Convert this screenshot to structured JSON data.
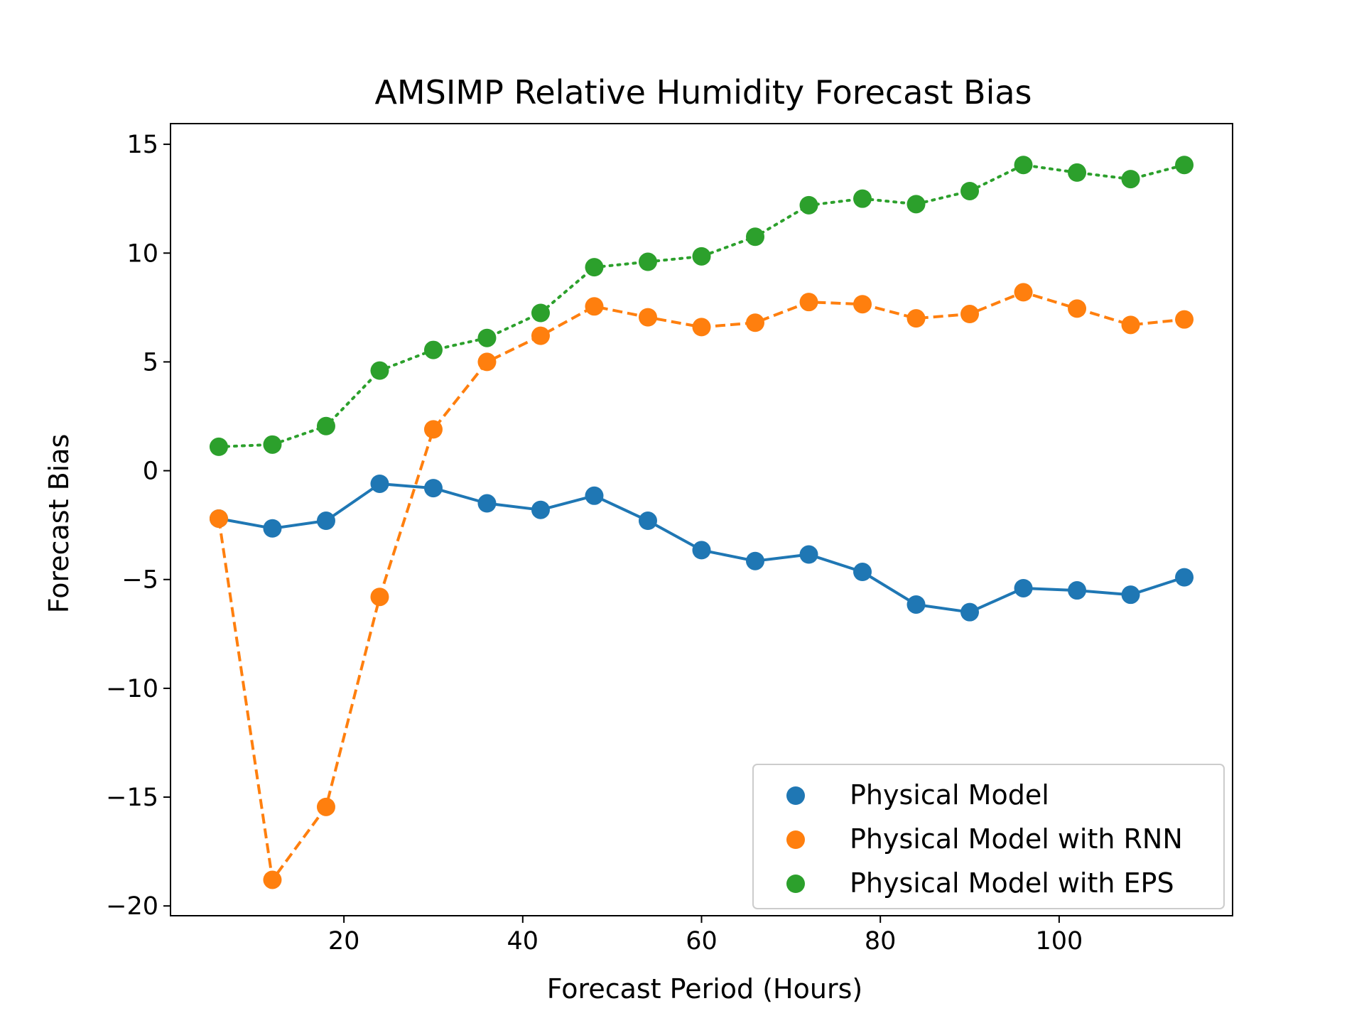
{
  "chart_data": {
    "type": "line",
    "title": "AMSIMP Relative Humidity Forecast Bias",
    "xlabel": "Forecast Period (Hours)",
    "ylabel": "Forecast Bias",
    "xlim": [
      0.6,
      119.4
    ],
    "ylim": [
      -20.45,
      15.95
    ],
    "xticks": [
      20,
      40,
      60,
      80,
      100
    ],
    "xtick_labels": [
      "20",
      "40",
      "60",
      "80",
      "100"
    ],
    "yticks": [
      -20,
      -15,
      -10,
      -5,
      0,
      5,
      10,
      15
    ],
    "ytick_labels": [
      "−20",
      "−15",
      "−10",
      "−5",
      "0",
      "5",
      "10",
      "15"
    ],
    "grid": false,
    "legend_position": "lower-right",
    "x": [
      6,
      12,
      18,
      24,
      30,
      36,
      42,
      48,
      54,
      60,
      66,
      72,
      78,
      84,
      90,
      96,
      102,
      108,
      114
    ],
    "series": [
      {
        "name": "Physical Model",
        "color": "#1f77b4",
        "line_style": "solid",
        "values": [
          -2.2,
          -2.65,
          -2.3,
          -0.6,
          -0.8,
          -1.5,
          -1.8,
          -1.15,
          -2.3,
          -3.65,
          -4.15,
          -3.85,
          -4.65,
          -6.15,
          -6.5,
          -5.4,
          -5.5,
          -5.7,
          -4.9
        ]
      },
      {
        "name": "Physical Model with RNN",
        "color": "#ff7f0e",
        "line_style": "dashed",
        "values": [
          -2.2,
          -18.8,
          -15.45,
          -5.8,
          1.9,
          5.0,
          6.2,
          7.55,
          7.05,
          6.6,
          6.8,
          7.75,
          7.65,
          7.0,
          7.2,
          8.2,
          7.45,
          6.7,
          6.95
        ]
      },
      {
        "name": "Physical Model with EPS",
        "color": "#2ca02c",
        "line_style": "dotted",
        "values": [
          1.1,
          1.2,
          2.05,
          4.6,
          5.55,
          6.1,
          7.25,
          9.35,
          9.6,
          9.85,
          10.75,
          12.2,
          12.5,
          12.25,
          12.85,
          14.05,
          13.7,
          13.4,
          14.05
        ]
      }
    ]
  }
}
